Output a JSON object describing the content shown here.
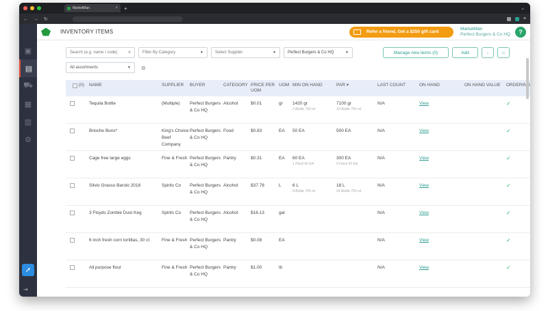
{
  "browser": {
    "tab_title": "MarketMan",
    "new_tab": "+",
    "colors": {
      "close": "#ff5f57",
      "min": "#febc2e",
      "max": "#28c840"
    }
  },
  "header": {
    "title": "INVENTORY ITEMS",
    "refer_text": "Refer a friend, Get a $250 gift card",
    "user_name": "MarketMan",
    "user_location": "Perfect Burgers & Co HQ",
    "help": "?"
  },
  "filters": {
    "search_placeholder": "Search (e.g. name / code)",
    "category": "Filter By Category",
    "supplier": "Select Supplier",
    "buyer": "Perfect Burgers & Co HQ",
    "assortments": "All assortments",
    "manage_label": "Manage new items (0)",
    "add_label": "Add"
  },
  "table": {
    "headers": {
      "select": "(0)",
      "name": "NAME",
      "supplier": "SUPPLIER",
      "buyer": "BUYER",
      "category": "CATEGORY",
      "price": "PRICE PER UOM",
      "uom": "UOM",
      "min": "MIN ON HAND",
      "par": "PAR ▾",
      "last_count": "LAST COUNT",
      "on_hand": "ON HAND",
      "on_hand_value": "ON HAND VALUE",
      "ordering": "ORDERING"
    },
    "rows": [
      {
        "name": "Tequila Bottle",
        "supplier": "(Multiple)",
        "buyer": "Perfect Burgers & Co HQ",
        "category": "Alcohol",
        "price": "$0.01",
        "uom": "gr",
        "min": "1420 gr",
        "min_sub": "2 Bottle 750 ml",
        "par": "7100 gr",
        "par_sub": "10 Bottle 750 ml",
        "last_count": "N/A",
        "on_hand": "View",
        "ordering": "✓"
      },
      {
        "name": "Brioche Buns*",
        "supplier": "King's Choice Beef Company",
        "buyer": "Perfect Burgers & Co HQ",
        "category": "Food",
        "price": "$0.83",
        "uom": "EA",
        "min": "50 EA",
        "min_sub": "",
        "par": "500 EA",
        "par_sub": "",
        "last_count": "N/A",
        "on_hand": "View",
        "ordering": "✓"
      },
      {
        "name": "Cage free large eggs",
        "supplier": "Fine & Fresh",
        "buyer": "Perfect Burgers & Co HQ",
        "category": "Pantry",
        "price": "$0.31",
        "uom": "EA",
        "min": "60 EA",
        "min_sub": "1 Flock 60 EA",
        "par": "300 EA",
        "par_sub": "5 Flock 60 EA",
        "last_count": "N/A",
        "on_hand": "View",
        "ordering": "✓"
      },
      {
        "name": "Silvio Grasso Barolo 2018",
        "supplier": "Spirits Co",
        "buyer": "Perfect Burgers & Co HQ",
        "category": "Alcohol",
        "price": "$37.78",
        "uom": "L",
        "min": "6 L",
        "min_sub": "8 Bottle 750 ml",
        "par": "18 L",
        "par_sub": "24 Bottle 750 ml",
        "last_count": "N/A",
        "on_hand": "View",
        "ordering": "✓"
      },
      {
        "name": "3 Floyds Zombie Dust Keg",
        "supplier": "Spirits Co",
        "buyer": "Perfect Burgers & Co HQ",
        "category": "Alcohol",
        "price": "$16.13",
        "uom": "gal",
        "min": "",
        "min_sub": "",
        "par": "",
        "par_sub": "",
        "last_count": "N/A",
        "on_hand": "View",
        "ordering": "✓"
      },
      {
        "name": "6 inch fresh corn tortillas, 30 ct",
        "supplier": "Fine & Fresh",
        "buyer": "Perfect Burgers & Co HQ",
        "category": "Pantry",
        "price": "$0.08",
        "uom": "EA",
        "min": "",
        "min_sub": "",
        "par": "",
        "par_sub": "",
        "last_count": "N/A",
        "on_hand": "View",
        "ordering": "✓"
      },
      {
        "name": "All purpose flour",
        "supplier": "Fine & Fresh",
        "buyer": "Perfect Burgers & Co HQ",
        "category": "Pantry",
        "price": "$1.00",
        "uom": "lb",
        "min": "",
        "min_sub": "",
        "par": "",
        "par_sub": "",
        "last_count": "N/A",
        "on_hand": "View",
        "ordering": "✓"
      }
    ]
  }
}
